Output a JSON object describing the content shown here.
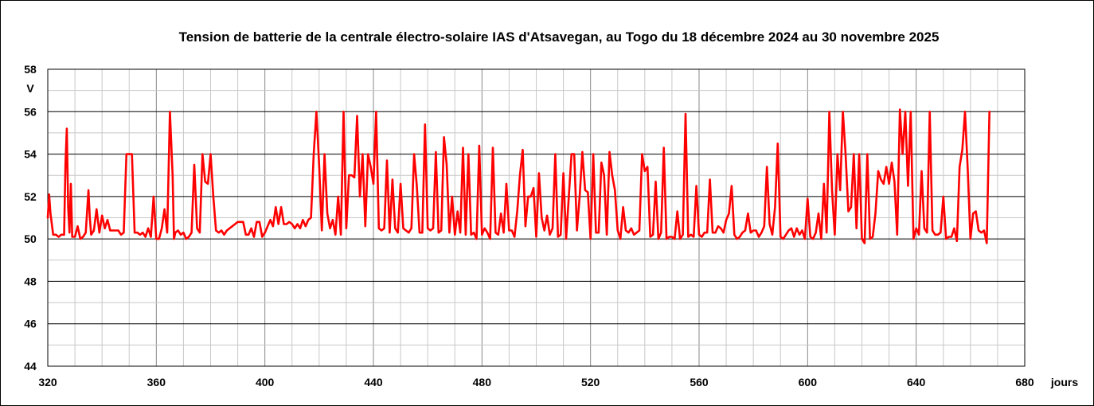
{
  "chart_data": {
    "type": "line",
    "title": "Tension de batterie de la centrale électro-solaire IAS d'Atsavegan, au Togo du 18 décembre 2024 au 30 novembre 2025",
    "xlabel": "jours",
    "ylabel": "V",
    "xlim": [
      320,
      680
    ],
    "ylim": [
      44,
      58
    ],
    "x_ticks": [
      320,
      360,
      400,
      440,
      480,
      520,
      560,
      600,
      640,
      680
    ],
    "x_minor_step": 10,
    "y_ticks": [
      44,
      46,
      48,
      50,
      52,
      54,
      56,
      58
    ],
    "y_minor_step": 1,
    "grid": true,
    "series": [
      {
        "color": "#ff0000",
        "x": [
          320,
          320.5,
          321,
          322,
          323,
          324,
          325,
          326,
          326.5,
          327,
          327.5,
          328,
          328.5,
          329,
          330,
          331,
          332,
          333,
          334,
          335,
          335.5,
          336,
          337,
          338,
          339,
          340,
          341,
          342,
          343,
          344,
          345,
          346,
          347,
          348,
          349,
          350,
          351,
          352,
          353,
          354,
          355,
          356,
          357,
          358,
          359,
          360,
          361,
          362,
          363,
          364,
          365,
          366,
          366.5,
          367,
          368,
          369,
          370,
          371,
          372,
          373,
          374,
          374.5,
          375,
          376,
          377,
          378,
          379,
          380,
          381,
          382,
          383,
          384,
          385,
          386,
          387,
          388,
          389,
          390,
          391,
          392,
          393,
          394,
          395,
          396,
          397,
          398,
          399,
          400,
          401,
          402,
          403,
          404,
          405,
          406,
          407,
          408,
          409,
          410,
          411,
          412,
          413,
          414,
          415,
          416,
          417,
          418,
          419,
          420,
          421,
          422,
          423,
          424,
          425,
          426,
          427,
          428,
          429,
          430,
          431,
          432,
          433,
          434,
          435,
          436,
          437,
          438,
          439,
          440,
          441,
          442,
          443,
          444,
          445,
          446,
          447,
          448,
          449,
          450,
          451,
          452,
          453,
          454,
          455,
          456,
          457,
          458,
          459,
          460,
          461,
          462,
          463,
          464,
          465,
          466,
          467,
          468,
          469,
          470,
          471,
          472,
          473,
          474,
          475,
          476,
          477,
          478,
          479,
          480,
          481,
          482,
          483,
          484,
          485,
          486,
          487,
          488,
          489,
          490,
          491,
          492,
          493,
          494,
          495,
          496,
          497,
          498,
          499,
          500,
          501,
          502,
          503,
          504,
          505,
          506,
          507,
          508,
          509,
          510,
          511,
          512,
          513,
          514,
          515,
          516,
          517,
          518,
          519,
          520,
          521,
          522,
          523,
          524,
          525,
          526,
          527,
          528,
          529,
          530,
          531,
          532,
          533,
          534,
          535,
          536,
          537,
          538,
          539,
          540,
          541,
          542,
          543,
          544,
          545,
          546,
          547,
          548,
          549,
          550,
          551,
          552,
          553,
          554,
          555,
          556,
          557,
          558,
          559,
          560,
          561,
          562,
          563,
          564,
          565,
          566,
          567,
          568,
          569,
          570,
          571,
          572,
          573,
          574,
          575,
          576,
          577,
          578,
          579,
          580,
          581,
          582,
          583,
          584,
          585,
          586,
          587,
          588,
          589,
          590,
          591,
          592,
          593,
          594,
          595,
          596,
          597,
          598,
          599,
          600,
          601,
          602,
          603,
          604,
          605,
          606,
          607,
          608,
          609,
          610,
          611,
          612,
          613,
          614,
          615,
          616,
          617,
          618,
          619,
          620,
          621,
          622,
          623,
          624,
          625,
          626,
          627,
          628,
          629,
          630,
          631,
          632,
          633,
          634,
          635,
          636,
          637,
          638,
          639,
          640,
          641,
          642,
          643,
          644,
          645,
          646,
          647,
          648,
          649,
          650,
          651,
          652,
          653,
          654,
          655,
          656,
          657,
          658,
          659,
          660,
          661,
          662,
          663,
          664,
          665,
          666,
          667
        ],
        "y": [
          51,
          52.1,
          51.2,
          50.2,
          50.2,
          50.1,
          50.2,
          50.2,
          53.5,
          55.2,
          51.5,
          50.3,
          52.6,
          50.1,
          50.1,
          50.6,
          50.0,
          50.1,
          50.3,
          52.3,
          51.0,
          50.2,
          50.4,
          51.4,
          50.3,
          51.1,
          50.5,
          50.9,
          50.4,
          50.4,
          50.4,
          50.4,
          50.2,
          50.3,
          54.0,
          54.0,
          54.0,
          50.3,
          50.3,
          50.2,
          50.3,
          50.1,
          50.5,
          50.1,
          52.0,
          50.0,
          50.0,
          50.5,
          51.4,
          50.3,
          56.0,
          53.0,
          50.0,
          50.3,
          50.4,
          50.2,
          50.3,
          50.0,
          50.1,
          50.3,
          53.5,
          52.0,
          50.5,
          50.3,
          54.0,
          52.7,
          52.6,
          54.0,
          52.0,
          50.4,
          50.3,
          50.4,
          50.2,
          50.4,
          50.5,
          50.6,
          50.7,
          50.8,
          50.8,
          50.8,
          50.2,
          50.2,
          50.5,
          50.1,
          50.8,
          50.8,
          50.1,
          50.3,
          50.6,
          50.9,
          50.6,
          51.5,
          50.7,
          51.5,
          50.7,
          50.7,
          50.8,
          50.7,
          50.5,
          50.7,
          50.5,
          50.9,
          50.6,
          50.9,
          51.0,
          54.0,
          56.0,
          53.5,
          50.4,
          54.0,
          51.2,
          50.5,
          50.9,
          50.2,
          52.0,
          50.2,
          56.0,
          50.5,
          53.0,
          53.0,
          52.9,
          55.8,
          52.0,
          54.0,
          50.6,
          54.0,
          53.4,
          52.6,
          56.0,
          50.5,
          50.4,
          50.5,
          53.7,
          50.3,
          52.8,
          50.5,
          50.3,
          52.6,
          50.5,
          50.4,
          50.3,
          50.5,
          54.0,
          52.5,
          50.3,
          50.3,
          55.4,
          50.5,
          50.4,
          50.5,
          54.1,
          50.3,
          50.4,
          54.8,
          53.5,
          50.3,
          52.0,
          50.2,
          51.3,
          50.3,
          54.3,
          50.2,
          54.0,
          50.2,
          50.3,
          50.0,
          54.4,
          50.2,
          50.5,
          50.3,
          50.0,
          54.3,
          50.3,
          50.2,
          51.2,
          50.3,
          52.6,
          50.4,
          50.4,
          50.1,
          51.3,
          53.0,
          54.2,
          50.6,
          52.0,
          52.0,
          52.4,
          50.1,
          53.1,
          51.0,
          50.4,
          51.1,
          50.2,
          50.5,
          54.0,
          50.1,
          50.2,
          53.1,
          50.0,
          52.0,
          54.0,
          54.0,
          50.4,
          52.0,
          54.1,
          52.3,
          52.2,
          50.0,
          54.0,
          50.3,
          50.3,
          53.6,
          53.0,
          50.2,
          54.1,
          53.0,
          52.3,
          50.4,
          50.0,
          51.5,
          50.4,
          50.3,
          50.5,
          50.2,
          50.3,
          50.4,
          54.0,
          53.2,
          53.4,
          50.1,
          50.2,
          52.7,
          50.0,
          50.3,
          54.3,
          50.0,
          50.1,
          50.1,
          50.0,
          51.3,
          50.0,
          50.2,
          55.9,
          50.1,
          50.2,
          50.1,
          52.5,
          50.2,
          50.1,
          50.3,
          50.3,
          52.8,
          50.3,
          50.3,
          50.6,
          50.5,
          50.3,
          50.9,
          51.2,
          52.5,
          50.2,
          50.0,
          50.1,
          50.3,
          50.4,
          51.2,
          50.3,
          50.4,
          50.4,
          50.1,
          50.3,
          50.6,
          53.4,
          50.7,
          50.2,
          51.5,
          54.5,
          50.1,
          50.0,
          50.2,
          50.4,
          50.5,
          50.1,
          50.5,
          50.2,
          50.4,
          50.0,
          51.9,
          50.1,
          50.0,
          50.3,
          51.2,
          50.0,
          52.6,
          50.3,
          56.0,
          52.3,
          50.2,
          54.0,
          52.3,
          56.0,
          54.0,
          51.3,
          51.5,
          54.0,
          50.5,
          54.0,
          50.0,
          49.8,
          54.0,
          50.0,
          50.1,
          51.2,
          53.2,
          52.8,
          52.6,
          53.4,
          52.6,
          53.6,
          52.7,
          50.2,
          56.1,
          54.0,
          56.0,
          52.5,
          56.0,
          50.0,
          50.5,
          50.2,
          53.2,
          50.5,
          50.3,
          56.0,
          50.4,
          50.2,
          50.2,
          50.3,
          52.0,
          50.0,
          50.1,
          50.1,
          50.5,
          49.9,
          53.4,
          54.2,
          56.0,
          53.3,
          50.0,
          51.2,
          51.3,
          50.4,
          50.3,
          50.4,
          49.8,
          56.0
        ]
      }
    ]
  }
}
